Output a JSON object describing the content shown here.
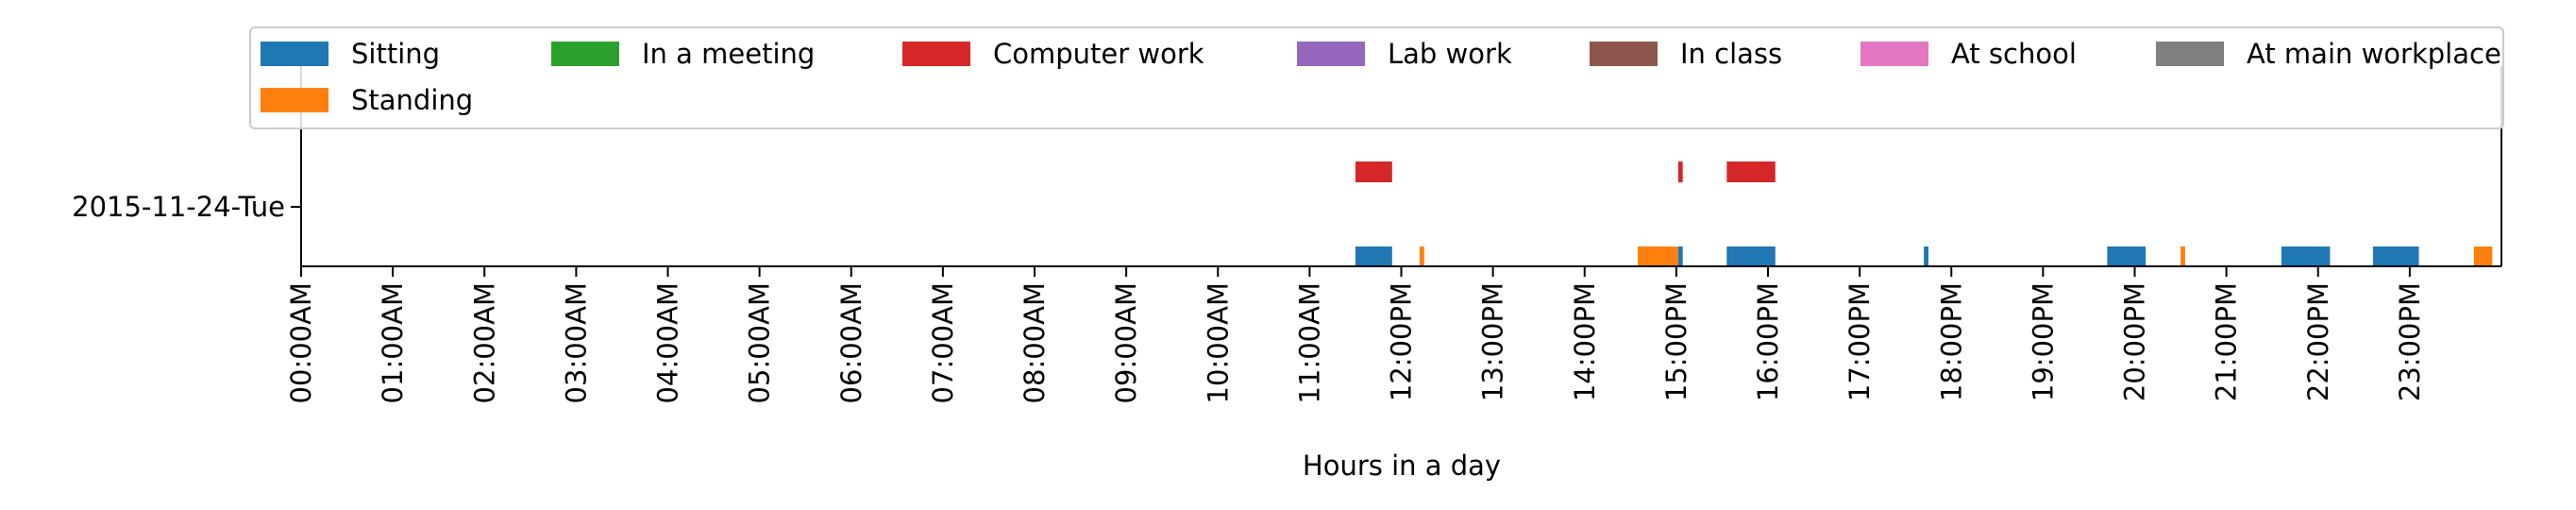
{
  "chart_data": {
    "type": "bar",
    "orientation": "horizontal-timeline",
    "xlabel": "Hours in a day",
    "xlim_hours": [
      0,
      24
    ],
    "x_ticks": [
      "00:00AM",
      "01:00AM",
      "02:00AM",
      "03:00AM",
      "04:00AM",
      "05:00AM",
      "06:00AM",
      "07:00AM",
      "08:00AM",
      "09:00AM",
      "10:00AM",
      "11:00AM",
      "12:00PM",
      "13:00PM",
      "14:00PM",
      "15:00PM",
      "16:00PM",
      "17:00PM",
      "18:00PM",
      "19:00PM",
      "20:00PM",
      "21:00PM",
      "22:00PM",
      "23:00PM"
    ],
    "y_categories": [
      "2015-11-24-Tue"
    ],
    "legend_position": "top",
    "grid": false,
    "series": [
      {
        "name": "Sitting",
        "color": "#1f77b4",
        "row": 0,
        "intervals": [
          [
            11.5,
            11.9
          ],
          [
            15.02,
            15.07
          ],
          [
            15.55,
            16.08
          ],
          [
            17.7,
            17.75
          ],
          [
            19.7,
            20.12
          ],
          [
            21.6,
            22.13
          ],
          [
            22.6,
            23.1
          ]
        ]
      },
      {
        "name": "Standing",
        "color": "#ff7f0e",
        "row": 0,
        "intervals": [
          [
            12.2,
            12.25
          ],
          [
            14.58,
            15.02
          ],
          [
            20.5,
            20.55
          ],
          [
            23.7,
            23.9
          ]
        ]
      },
      {
        "name": "In a meeting",
        "color": "#2ca02c",
        "row": 1,
        "intervals": []
      },
      {
        "name": "Computer work",
        "color": "#d62728",
        "row": 2,
        "intervals": [
          [
            11.5,
            11.9
          ],
          [
            15.02,
            15.07
          ],
          [
            15.55,
            16.08
          ]
        ]
      },
      {
        "name": "Lab work",
        "color": "#9467bd",
        "row": 3,
        "intervals": []
      },
      {
        "name": "In class",
        "color": "#8c564b",
        "row": 4,
        "intervals": []
      },
      {
        "name": "At school",
        "color": "#e377c2",
        "row": 5,
        "intervals": []
      },
      {
        "name": "At main workplace",
        "color": "#7f7f7f",
        "row": 6,
        "intervals": []
      }
    ]
  }
}
